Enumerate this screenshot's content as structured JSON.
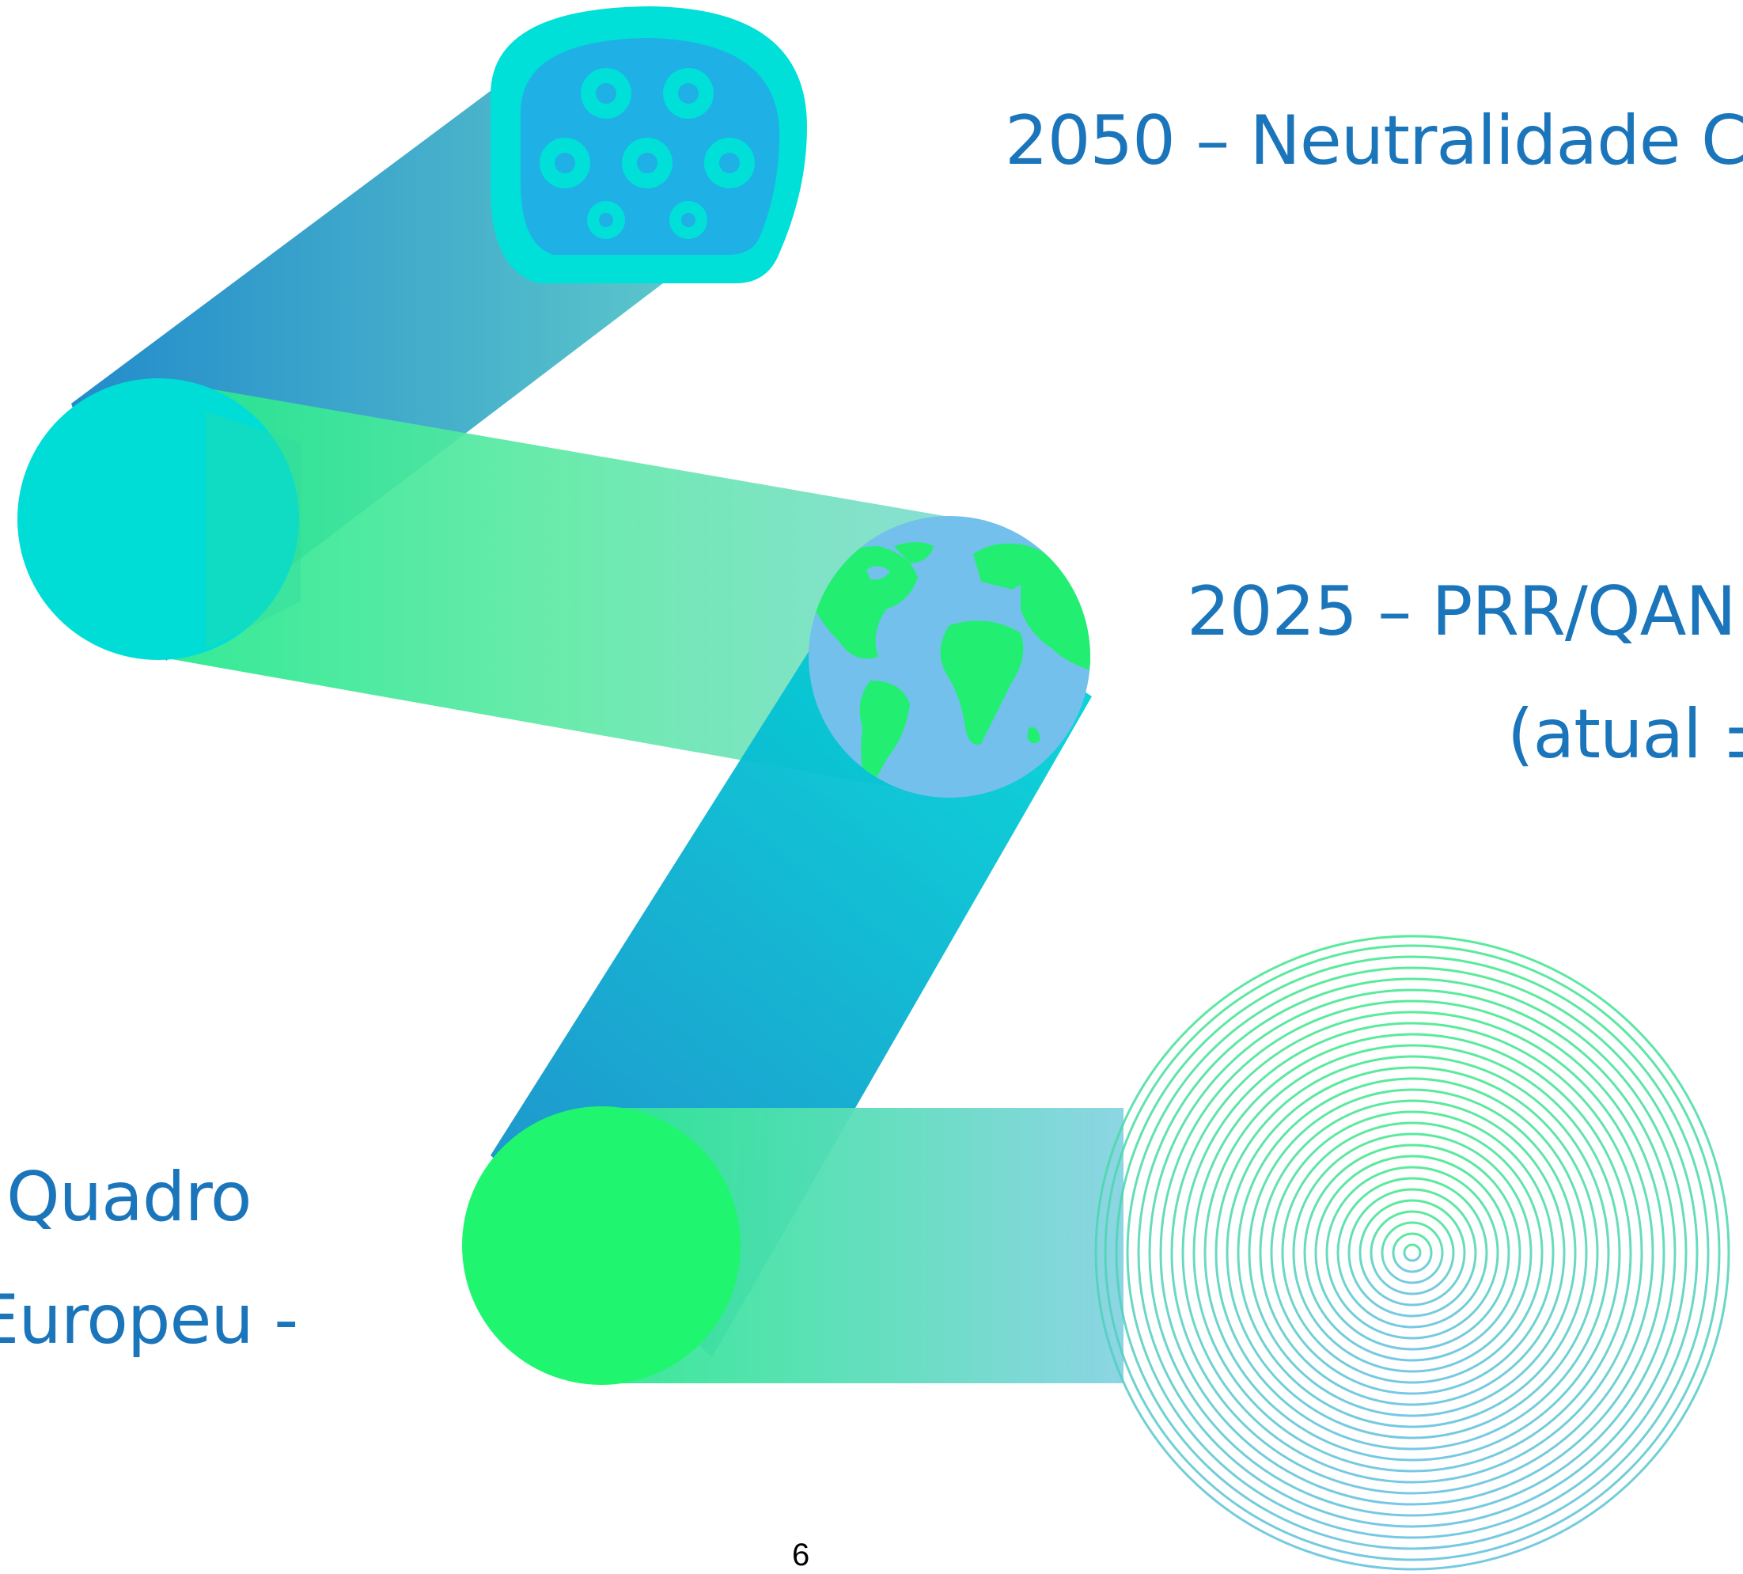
{
  "slide": {
    "milestone_2050": "2050 – Neutralidade C",
    "milestone_2025": "2025 – PRR/QAN",
    "milestone_2025_sub": "(atual ±",
    "european_framework_line1": "o Quadro",
    "european_framework_line2": "Europeu -",
    "page_number": "6"
  },
  "colors": {
    "text_blue": "#1b75bb",
    "turquoise": "#00d9d9",
    "cyan": "#00c8d6",
    "green": "#22f57a",
    "light_blue": "#7cc3eb",
    "ocean_blue": "#74c0ec",
    "connector_blue": "#22aee8",
    "deep_blue": "#1785c8",
    "mint": "#5fe9a2"
  },
  "icons": {
    "connector": "ev-charging-connector-icon",
    "globe": "world-globe-icon",
    "rings": "concentric-rings-graphic"
  }
}
